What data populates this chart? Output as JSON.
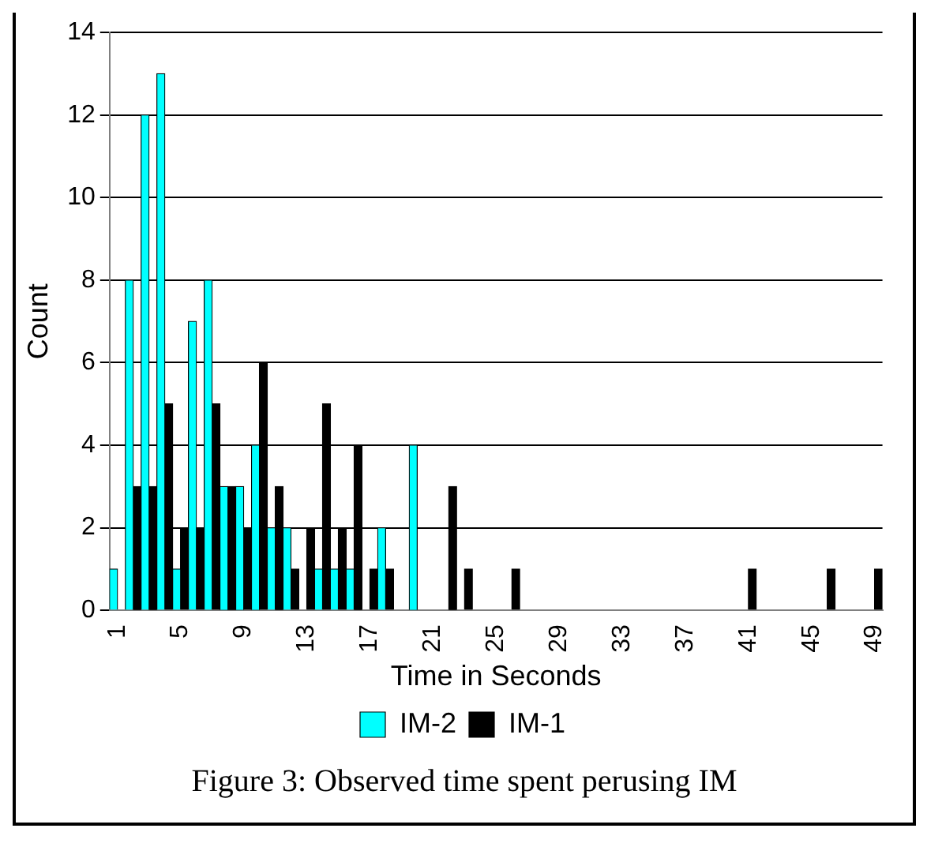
{
  "chart_data": {
    "type": "bar",
    "xlabel": "Time in Seconds",
    "ylabel": "Count",
    "annotations": [
      "Figure 3: Observed time spent perusing IM"
    ],
    "categories": [
      "1",
      null,
      null,
      null,
      "5",
      null,
      null,
      null,
      "9",
      null,
      null,
      null,
      "13",
      null,
      null,
      null,
      "17",
      null,
      null,
      null,
      "21",
      null,
      null,
      null,
      "25",
      null,
      null,
      null,
      "29",
      null,
      null,
      null,
      "33",
      null,
      null,
      null,
      "37",
      null,
      null,
      null,
      "41",
      null,
      null,
      null,
      "45",
      null,
      null,
      null,
      "49"
    ],
    "series": [
      {
        "name": "IM-2",
        "color": "#00ffff",
        "values": [
          1,
          8,
          12,
          13,
          1,
          7,
          8,
          3,
          3,
          4,
          2,
          2,
          0,
          1,
          1,
          1,
          0,
          2,
          0,
          4,
          0,
          0,
          0,
          0,
          0,
          0,
          0,
          0,
          0,
          0,
          0,
          0,
          0,
          0,
          0,
          0,
          0,
          0,
          0,
          0,
          0,
          0,
          0,
          0,
          0,
          0,
          0,
          0,
          0
        ]
      },
      {
        "name": "IM-1",
        "color": "#000000",
        "values": [
          0,
          3,
          3,
          5,
          2,
          2,
          5,
          3,
          2,
          6,
          3,
          1,
          2,
          5,
          2,
          4,
          1,
          1,
          0,
          0,
          0,
          3,
          1,
          0,
          0,
          1,
          0,
          0,
          0,
          0,
          0,
          0,
          0,
          0,
          0,
          0,
          0,
          0,
          0,
          0,
          1,
          0,
          0,
          0,
          0,
          1,
          0,
          0,
          1
        ]
      }
    ],
    "ylim": [
      0,
      14
    ],
    "yticks": [
      0,
      2,
      4,
      6,
      8,
      10,
      12,
      14
    ],
    "grid": "y",
    "legend": "bottom"
  }
}
